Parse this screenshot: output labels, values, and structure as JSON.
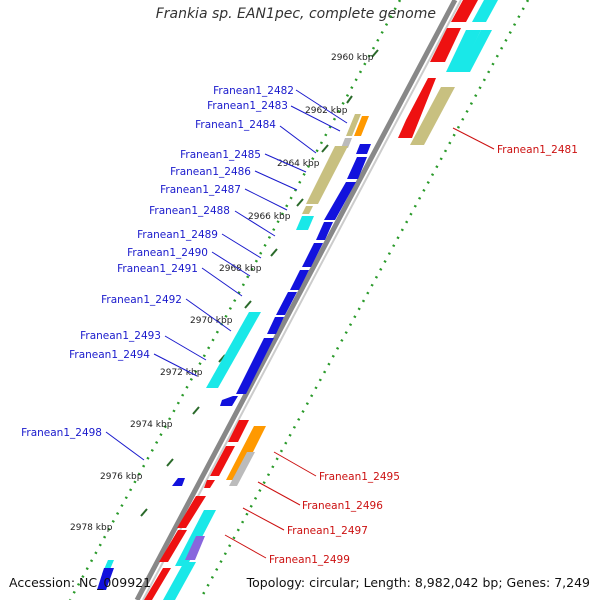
{
  "title": "Frankia sp. EAN1pec, complete genome",
  "accession_label": "Accession: NC_009921",
  "topology_label": "Topology: circular; Length: 8,982,042 bp; Genes: 7,249",
  "ticks": [
    "2960 kbp",
    "2962 kbp",
    "2964 kbp",
    "2966 kbp",
    "2968 kbp",
    "2970 kbp",
    "2972 kbp",
    "2974 kbp",
    "2976 kbp",
    "2978 kbp"
  ],
  "genes_left": [
    "Franean1_2482",
    "Franean1_2483",
    "Franean1_2484",
    "Franean1_2485",
    "Franean1_2486",
    "Franean1_2487",
    "Franean1_2488",
    "Franean1_2489",
    "Franean1_2490",
    "Franean1_2491",
    "Franean1_2492",
    "Franean1_2493",
    "Franean1_2494",
    "Franean1_2498"
  ],
  "genes_right": [
    "Franean1_2481",
    "Franean1_2495",
    "Franean1_2496",
    "Franean1_2497",
    "Franean1_2499"
  ],
  "colors": {
    "left_label": "#1a1acc",
    "right_label": "#cc1111",
    "backbone": "#888888",
    "tick_dots": "#2a9a2a",
    "cds_blue": "#1212dd",
    "cds_red": "#ee1111",
    "cds_cyan": "#19e8e8",
    "cds_tan": "#c8c080",
    "cds_orange": "#ff9900",
    "cds_gray": "#bbbbbb",
    "cds_purple": "#8866dd"
  }
}
